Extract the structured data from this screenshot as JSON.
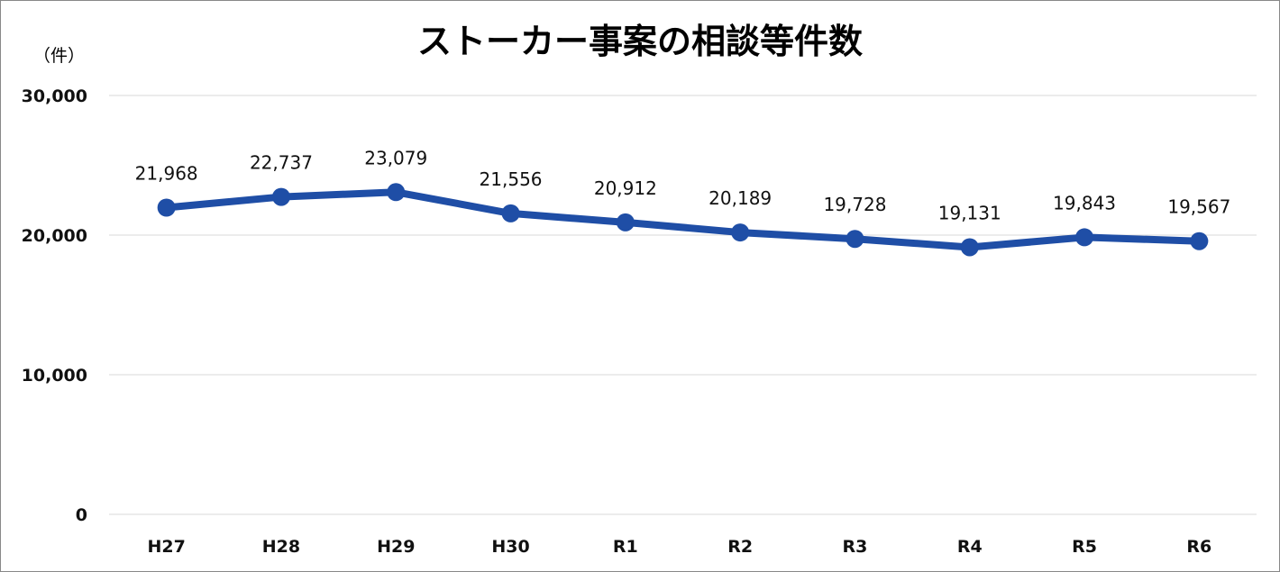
{
  "chart_data": {
    "type": "line",
    "title": "ストーカー事案の相談等件数",
    "ylabel": "（件）",
    "categories": [
      "H27",
      "H28",
      "H29",
      "H30",
      "R1",
      "R2",
      "R3",
      "R4",
      "R5",
      "R6"
    ],
    "values": [
      21968,
      22737,
      23079,
      21556,
      20912,
      20189,
      19728,
      19131,
      19843,
      19567
    ],
    "data_labels": [
      "21,968",
      "22,737",
      "23,079",
      "21,556",
      "20,912",
      "20,189",
      "19,728",
      "19,131",
      "19,843",
      "19,567"
    ],
    "ylim": [
      0,
      30000
    ],
    "yticks": [
      0,
      10000,
      20000,
      30000
    ],
    "ytick_labels": [
      "0",
      "10,000",
      "20,000",
      "30,000"
    ],
    "grid": true,
    "legend": "none",
    "colors": {
      "line": "#1f4ea6",
      "grid": "#d9d9d9"
    }
  }
}
